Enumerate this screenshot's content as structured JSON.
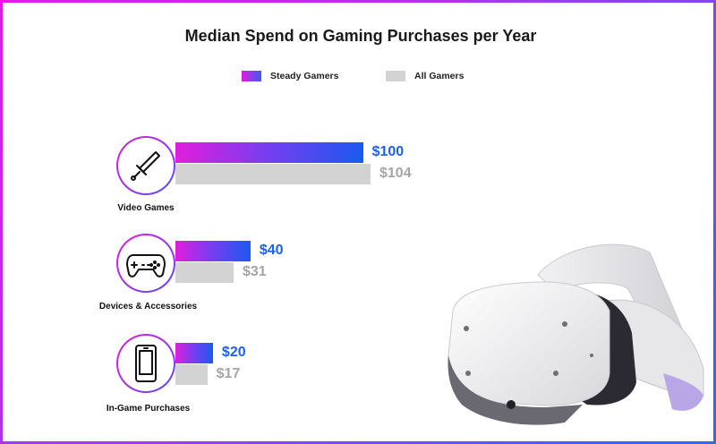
{
  "chart_data": {
    "type": "bar",
    "orientation": "horizontal",
    "title": "Median Spend on Gaming Purchases per Year",
    "categories": [
      "Video Games",
      "Devices & Accessories",
      "In-Game Purchases"
    ],
    "series": [
      {
        "name": "Steady Gamers",
        "values": [
          100,
          40,
          20
        ],
        "labels": [
          "$100",
          "$40",
          "$20"
        ],
        "color": "#2060f0"
      },
      {
        "name": "All Gamers",
        "values": [
          104,
          31,
          17
        ],
        "labels": [
          "$104",
          "$31",
          "$17"
        ],
        "color": "#d3d3d3"
      }
    ],
    "legend_position": "top-center",
    "xlim": [
      0,
      104
    ]
  },
  "icons": [
    "sword-icon",
    "game-controller-icon",
    "smartphone-icon"
  ],
  "decoration": "vr-headset-image"
}
